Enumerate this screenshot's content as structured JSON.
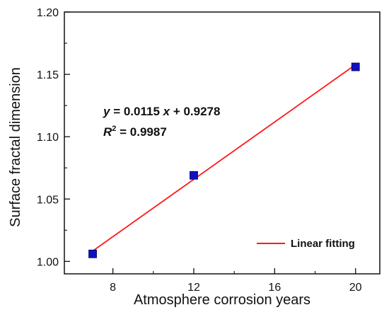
{
  "chart_data": {
    "type": "scatter",
    "xlabel": "Atmosphere corrosion years",
    "ylabel": "Surface fractal dimension",
    "xlim": [
      5.6,
      21.2
    ],
    "ylim": [
      0.99,
      1.2
    ],
    "x_ticks": [
      8,
      12,
      16,
      20
    ],
    "x_tick_labels": [
      "8",
      "12",
      "16",
      "20"
    ],
    "y_ticks": [
      1.0,
      1.05,
      1.1,
      1.15,
      1.2
    ],
    "y_tick_labels": [
      "1.00",
      "1.05",
      "1.10",
      "1.15",
      "1.20"
    ],
    "grid": false,
    "series": [
      {
        "kind": "points",
        "marker": "square",
        "color": "#1010c0",
        "x": [
          7,
          12,
          20
        ],
        "y": [
          1.006,
          1.069,
          1.156
        ]
      },
      {
        "name": "Linear fitting",
        "kind": "fit-line",
        "color": "#ff1a1a",
        "slope": 0.0115,
        "intercept": 0.9278,
        "x_range": [
          7,
          20
        ]
      }
    ],
    "annotation": {
      "equation_y": "y",
      "equation_rest": " = 0.0115 ",
      "equation_x": "x",
      "equation_tail": " + 0.9278",
      "r2_label": "R",
      "r2_superscript": "2",
      "r2_value": " = 0.9987"
    },
    "legend": {
      "placement": "bottom-right",
      "entries": [
        "Linear fitting"
      ]
    }
  }
}
